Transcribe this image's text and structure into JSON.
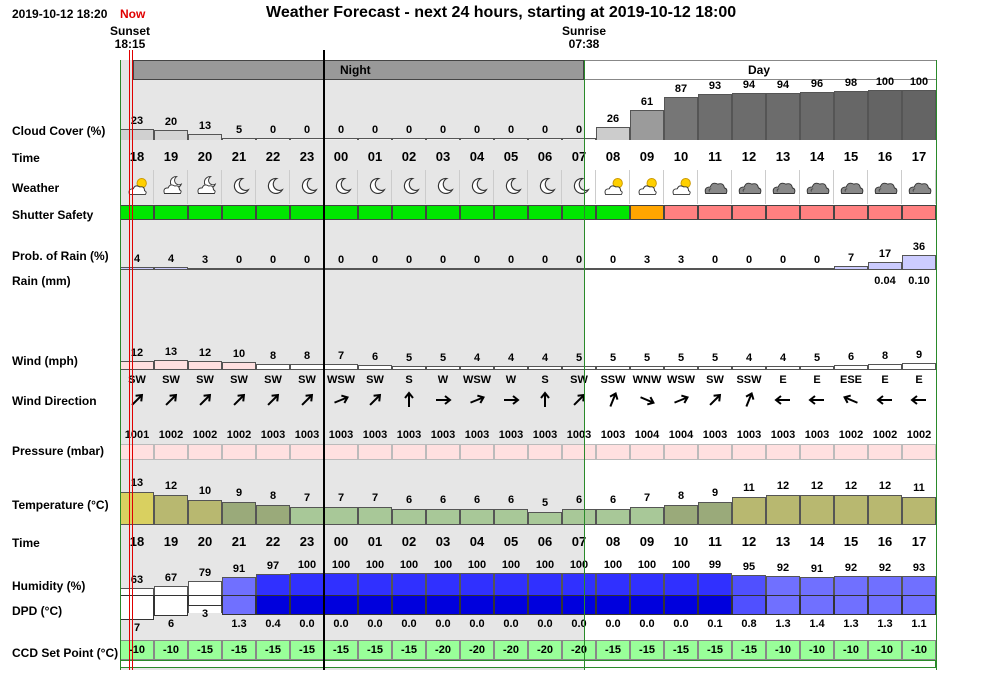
{
  "header": {
    "datetime": "2019-10-12 18:20",
    "now_label": "Now",
    "title": "Weather Forecast - next 24 hours, starting at 2019-10-12 18:00",
    "sunset_label": "Sunset",
    "sunset_time": "18:15",
    "sunrise_label": "Sunrise",
    "sunrise_time": "07:38",
    "night_label": "Night",
    "day_label": "Day"
  },
  "labels": {
    "cloud": "Cloud Cover (%)",
    "time": "Time",
    "weather": "Weather",
    "shutter": "Shutter Safety",
    "prob_rain": "Prob. of Rain (%)",
    "rain": "Rain (mm)",
    "wind": "Wind (mph)",
    "wind_dir": "Wind Direction",
    "pressure": "Pressure (mbar)",
    "temperature": "Temperature (°C)",
    "time2": "Time",
    "humidity": "Humidity (%)",
    "dpd": "DPD (°C)",
    "ccd": "CCD Set Point (°C)"
  },
  "hours": [
    "18",
    "19",
    "20",
    "21",
    "22",
    "23",
    "00",
    "01",
    "02",
    "03",
    "04",
    "05",
    "06",
    "07",
    "08",
    "09",
    "10",
    "11",
    "12",
    "13",
    "14",
    "15",
    "16",
    "17"
  ],
  "cloud_cover": [
    "23",
    "20",
    "13",
    "5",
    "0",
    "0",
    "0",
    "0",
    "0",
    "0",
    "0",
    "0",
    "0",
    "0",
    "26",
    "61",
    "87",
    "93",
    "94",
    "94",
    "96",
    "98",
    "100",
    "100"
  ],
  "weather_icons": [
    "partly-cloudy-icon",
    "cloudy-moon-icon",
    "cloudy-moon-icon",
    "moon-icon",
    "moon-icon",
    "moon-icon",
    "moon-icon",
    "moon-icon",
    "moon-icon",
    "moon-icon",
    "moon-icon",
    "moon-icon",
    "moon-icon",
    "moon-icon",
    "partly-cloudy-icon",
    "partly-cloudy-icon",
    "partly-cloudy-icon",
    "cloud-icon",
    "cloud-icon",
    "cloud-icon",
    "cloud-icon",
    "cloud-icon",
    "cloud-icon",
    "cloud-icon"
  ],
  "shutter_safety": [
    "safe",
    "safe",
    "safe",
    "safe",
    "safe",
    "safe",
    "safe",
    "safe",
    "safe",
    "safe",
    "safe",
    "safe",
    "safe",
    "safe",
    "safe",
    "caution",
    "unsafe",
    "unsafe",
    "unsafe",
    "unsafe",
    "unsafe",
    "unsafe",
    "unsafe",
    "unsafe"
  ],
  "shutter_colors": {
    "safe": "#00e600",
    "caution": "#ffa500",
    "unsafe": "#ff8080"
  },
  "prob_rain": [
    "4",
    "4",
    "3",
    "0",
    "0",
    "0",
    "0",
    "0",
    "0",
    "0",
    "0",
    "0",
    "0",
    "0",
    "0",
    "3",
    "3",
    "0",
    "0",
    "0",
    "0",
    "7",
    "17",
    "36"
  ],
  "rain_mm": [
    "",
    "",
    "",
    "",
    "",
    "",
    "",
    "",
    "",
    "",
    "",
    "",
    "",
    "",
    "",
    "",
    "",
    "",
    "",
    "",
    "",
    "",
    "0.04",
    "0.10"
  ],
  "wind_mph": [
    "12",
    "13",
    "12",
    "10",
    "8",
    "8",
    "7",
    "6",
    "5",
    "5",
    "4",
    "4",
    "4",
    "5",
    "5",
    "5",
    "5",
    "5",
    "4",
    "4",
    "5",
    "6",
    "8",
    "9"
  ],
  "wind_dir": [
    "SW",
    "SW",
    "SW",
    "SW",
    "SW",
    "SW",
    "WSW",
    "SW",
    "S",
    "W",
    "WSW",
    "W",
    "S",
    "SW",
    "SSW",
    "WNW",
    "WSW",
    "SW",
    "SSW",
    "E",
    "E",
    "ESE",
    "E",
    "E"
  ],
  "wind_arrow_deg": [
    45,
    45,
    45,
    45,
    45,
    45,
    68,
    45,
    0,
    90,
    68,
    90,
    0,
    45,
    22,
    113,
    68,
    45,
    22,
    270,
    270,
    293,
    270,
    270
  ],
  "pressure": [
    "1001",
    "1002",
    "1002",
    "1002",
    "1003",
    "1003",
    "1003",
    "1003",
    "1003",
    "1003",
    "1003",
    "1003",
    "1003",
    "1003",
    "1003",
    "1004",
    "1004",
    "1003",
    "1003",
    "1003",
    "1003",
    "1002",
    "1002",
    "1002"
  ],
  "temperature": [
    "13",
    "12",
    "10",
    "9",
    "8",
    "7",
    "7",
    "7",
    "6",
    "6",
    "6",
    "6",
    "5",
    "6",
    "6",
    "7",
    "8",
    "9",
    "11",
    "12",
    "12",
    "12",
    "12",
    "11"
  ],
  "humidity": [
    "63",
    "67",
    "79",
    "91",
    "97",
    "100",
    "100",
    "100",
    "100",
    "100",
    "100",
    "100",
    "100",
    "100",
    "100",
    "100",
    "100",
    "99",
    "95",
    "92",
    "91",
    "92",
    "92",
    "93"
  ],
  "dpd": [
    "7",
    "6",
    "3",
    "1.3",
    "0.4",
    "0.0",
    "0.0",
    "0.0",
    "0.0",
    "0.0",
    "0.0",
    "0.0",
    "0.0",
    "0.0",
    "0.0",
    "0.0",
    "0.0",
    "0.1",
    "0.8",
    "1.3",
    "1.4",
    "1.3",
    "1.3",
    "1.1"
  ],
  "ccd_set_point": [
    "-10",
    "-10",
    "-15",
    "-15",
    "-15",
    "-15",
    "-15",
    "-15",
    "-15",
    "-20",
    "-20",
    "-20",
    "-20",
    "-20",
    "-15",
    "-15",
    "-15",
    "-15",
    "-15",
    "-10",
    "-10",
    "-10",
    "-10",
    "-10"
  ],
  "ccd_colors": {
    "-10": "#99ff99",
    "-15": "#99ff99",
    "-20": "#99ff99"
  }
}
